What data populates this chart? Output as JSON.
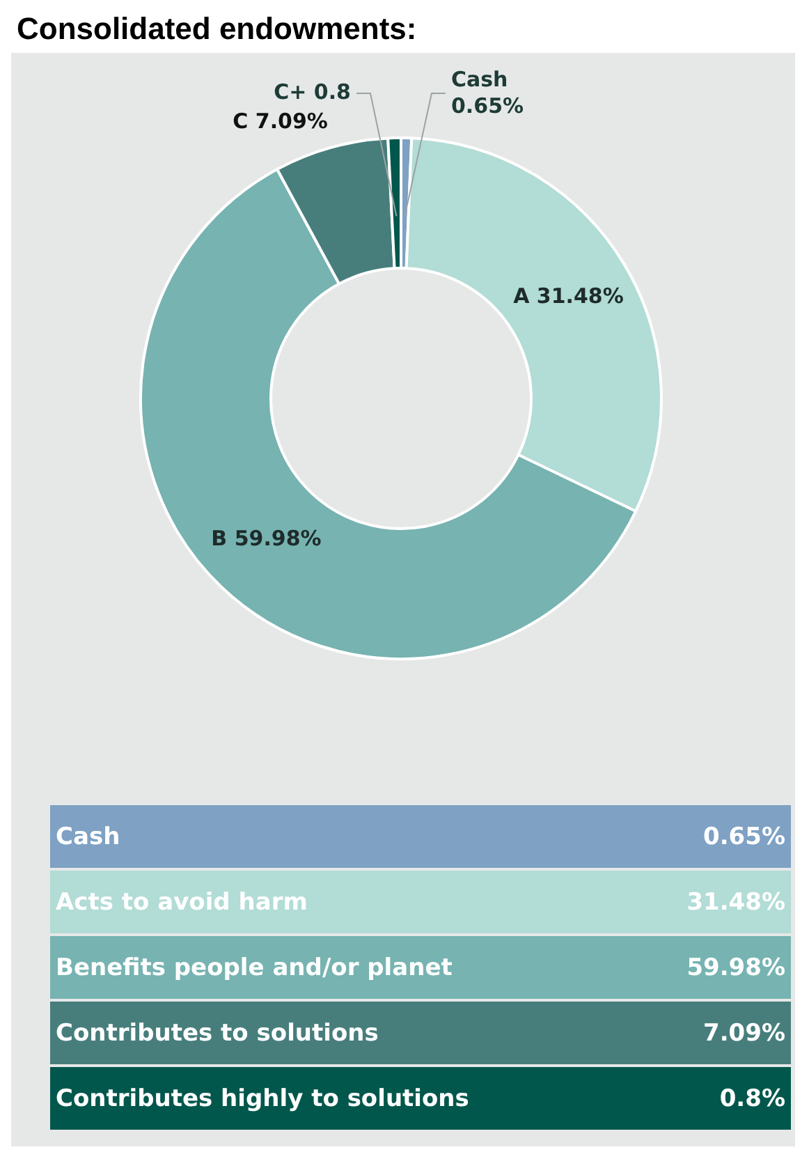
{
  "chart_data": {
    "type": "donut",
    "title": "Consolidated endowments:",
    "categories": [
      "Cash",
      "A",
      "B",
      "C",
      "C+"
    ],
    "values": [
      0.65,
      31.48,
      59.98,
      7.09,
      0.8
    ],
    "colors": [
      "#7ea1c4",
      "#b2dcd6",
      "#76b3b1",
      "#477e7c",
      "#02574c"
    ],
    "value_labels": [
      "0.65%",
      "31.48%",
      "59.98%",
      "7.09%",
      "0.8"
    ],
    "annotations": [
      "Cash",
      "0.65%",
      "Acts to avoid harm",
      "31.48%",
      "Benefits people and/or planet",
      "59.98%",
      "Contributes to solutions",
      "7.09%",
      "Contributes highly to solutions",
      "0.8%"
    ]
  }
}
